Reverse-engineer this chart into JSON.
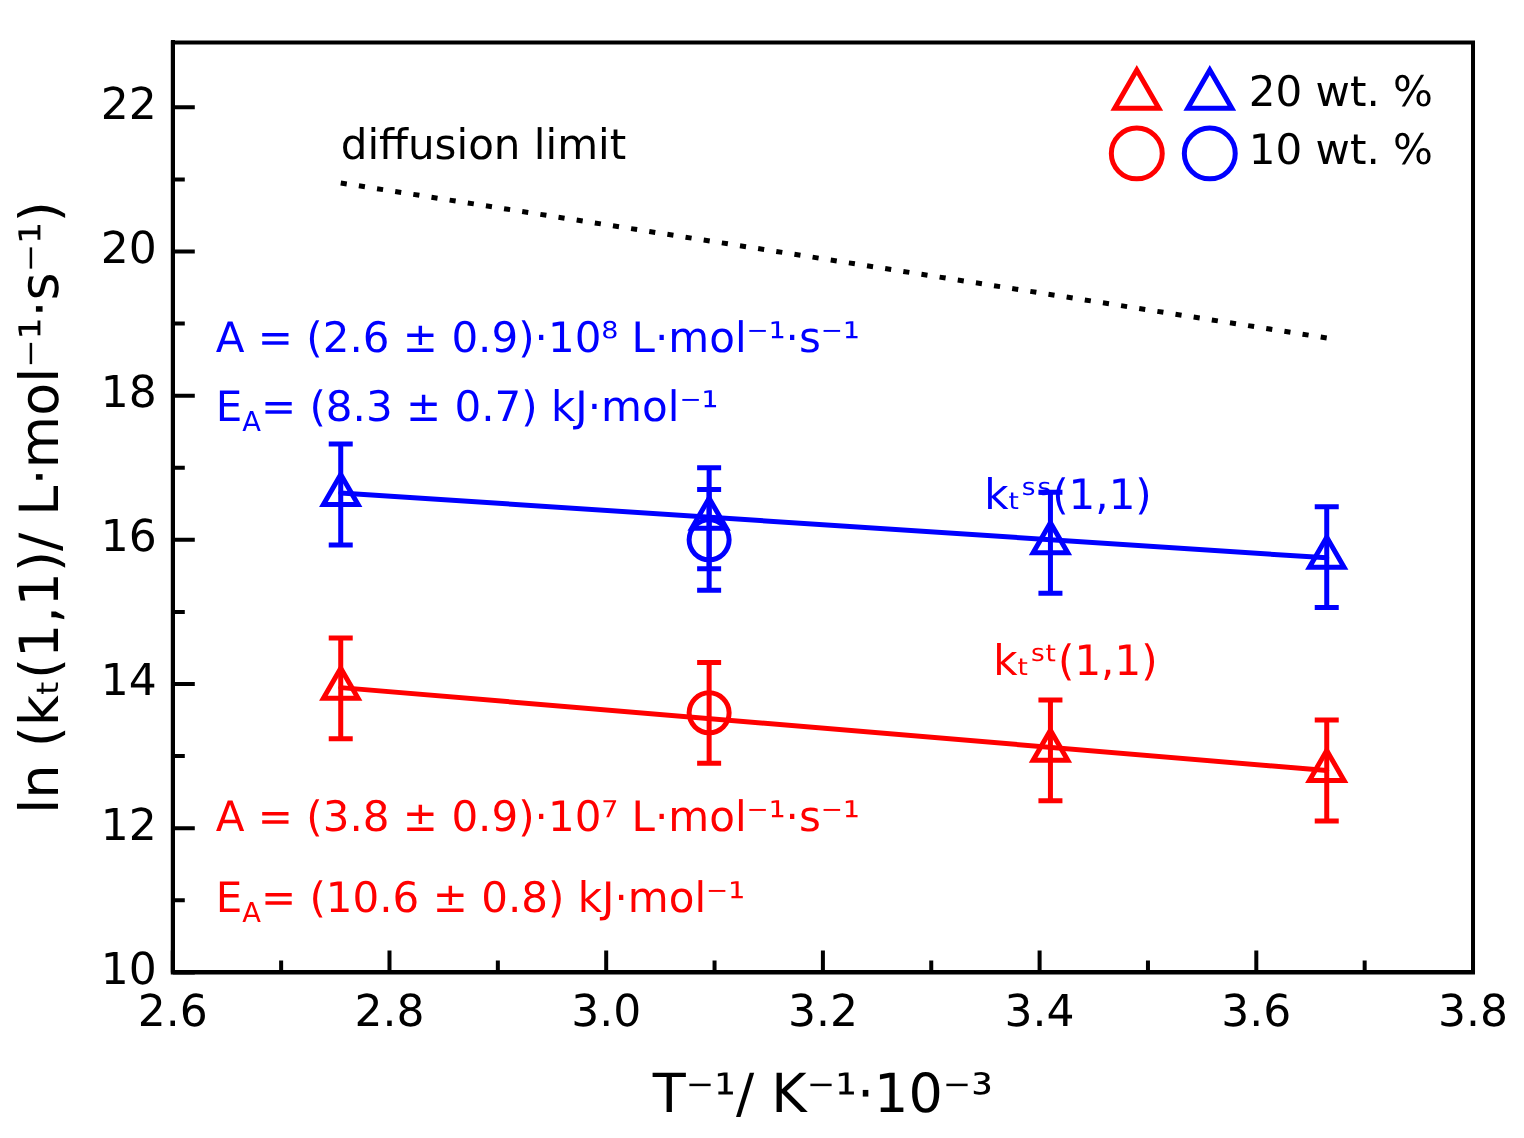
{
  "chart_data": {
    "type": "scatter",
    "xlabel": "T⁻¹/ K⁻¹·10⁻³",
    "ylabel": "ln (kₜ(1,1)/ L·mol⁻¹·s⁻¹)",
    "xlim": [
      2.6,
      3.8
    ],
    "xticks": [
      2.6,
      {
        "value": 2.7,
        "label": null
      },
      2.8,
      {
        "value": 2.9,
        "label": null
      },
      {
        "value": 3.0,
        "label": "3.0"
      },
      {
        "value": 3.1,
        "label": null
      },
      3.2,
      {
        "value": 3.3,
        "label": null
      },
      3.4,
      {
        "value": 3.5,
        "label": null
      },
      3.6,
      {
        "value": 3.7,
        "label": null
      },
      3.8
    ],
    "ylim": [
      10,
      22.9
    ],
    "yticks": [
      10,
      {
        "value": 11,
        "label": null
      },
      12,
      {
        "value": 13,
        "label": null
      },
      14,
      {
        "value": 15,
        "label": null
      },
      16,
      {
        "value": 17,
        "label": null
      },
      18,
      {
        "value": 19,
        "label": null
      },
      20,
      {
        "value": 21,
        "label": null
      },
      22
    ],
    "legend": "top right",
    "series": [
      {
        "type": "line",
        "color": "#0000ff",
        "x": [
          2.755,
          3.665
        ],
        "values": [
          16.65,
          15.75
        ],
        "marker": "none"
      },
      {
        "type": "line",
        "color": "#ff0000",
        "x": [
          2.755,
          3.665
        ],
        "values": [
          13.95,
          12.8
        ],
        "marker": "none"
      },
      {
        "type": "line",
        "name": "diffusion limit",
        "color": "#000000",
        "x": [
          2.755,
          3.665
        ],
        "values": [
          20.95,
          18.8
        ],
        "marker": "none",
        "line_style": "dotted"
      },
      {
        "name": "20 wt. %",
        "color": "#0000ff",
        "marker": "triangle",
        "x": [
          2.755,
          3.095,
          3.41,
          3.665
        ],
        "values": [
          16.63,
          16.3,
          15.96,
          15.76
        ],
        "errors": [
          0.7,
          0.7,
          0.7,
          0.7
        ]
      },
      {
        "color": "#ff0000",
        "marker": "triangle",
        "x": [
          2.755,
          3.41,
          3.665
        ],
        "values": [
          13.94,
          13.08,
          12.8
        ],
        "errors": [
          0.7,
          0.7,
          0.7
        ]
      },
      {
        "name": "10 wt. %",
        "color": "#0000ff",
        "marker": "circle",
        "x": [
          3.095
        ],
        "values": [
          16.0
        ],
        "errors": [
          0.7
        ]
      },
      {
        "color": "#ff0000",
        "marker": "circle",
        "x": [
          3.095
        ],
        "values": [
          13.6
        ],
        "errors": [
          0.7
        ]
      }
    ],
    "annotations": [
      "A = (2.6 ± 0.9)·10⁸ L·mol⁻¹·s⁻¹",
      "E$_{A}$= (8.3 ± 0.7) kJ·mol⁻¹",
      "kₜˢˢ(1,1)",
      "kₜˢᵗ(1,1)",
      "A = (3.8 ± 0.9)·10⁷ L·mol⁻¹·s⁻¹",
      "E$_{A}$= (10.6 ± 0.8) kJ·mol⁻¹"
    ]
  }
}
